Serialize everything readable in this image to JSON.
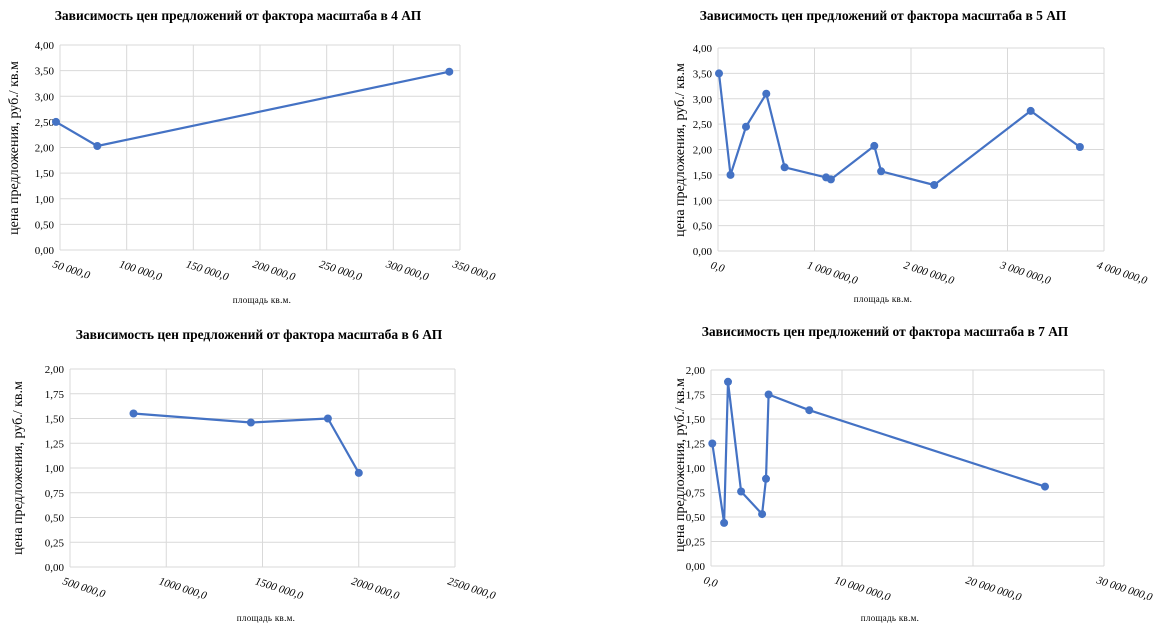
{
  "chart_data": [
    {
      "type": "line",
      "title": "Зависимость цен предложений от фактора масштаба в 4 АП",
      "xlabel": "площадь кв.м.",
      "ylabel": "цена предложения, руб./ кв.м",
      "xlim": [
        50000,
        350000
      ],
      "ylim": [
        0,
        4
      ],
      "x_tick_labels": [
        "50 000,0",
        "100 000,0",
        "150 000,0",
        "200 000,0",
        "250 000,0",
        "300 000,0",
        "350 000,0"
      ],
      "y_tick_labels": [
        "0,00",
        "0,50",
        "1,00",
        "1,50",
        "2,00",
        "2,50",
        "3,00",
        "3,50",
        "4,00"
      ],
      "grid": true,
      "series": [
        {
          "x": [
            47000,
            78000,
            342000
          ],
          "values": [
            2.5,
            2.03,
            3.48
          ]
        }
      ]
    },
    {
      "type": "line",
      "title": "Зависимость цен предложений от фактора масштаба в 5 АП",
      "xlabel": "площадь кв.м.",
      "ylabel": "цена предложения, руб./ кв.м",
      "xlim": [
        0,
        4000000
      ],
      "ylim": [
        0,
        4
      ],
      "x_tick_labels": [
        "0,0",
        "1 000 000,0",
        "2 000 000,0",
        "3 000 000,0",
        "4 000 000,0"
      ],
      "y_tick_labels": [
        "0,00",
        "0,50",
        "1,00",
        "1,50",
        "2,00",
        "2,50",
        "3,00",
        "3,50",
        "4,00"
      ],
      "grid": true,
      "series": [
        {
          "x": [
            10000,
            130000,
            290000,
            500000,
            690000,
            1120000,
            1170000,
            1620000,
            1690000,
            2240000,
            3240000,
            3750000
          ],
          "values": [
            3.5,
            1.5,
            2.45,
            3.1,
            1.65,
            1.45,
            1.41,
            2.07,
            1.57,
            1.3,
            2.76,
            2.05
          ]
        }
      ]
    },
    {
      "type": "line",
      "title": "Зависимость цен предложений от фактора масштаба в 6 АП",
      "xlabel": "площадь кв.м.",
      "ylabel": "цена предложения, руб./ кв.м",
      "xlim": [
        500000,
        2500000
      ],
      "ylim": [
        0,
        2
      ],
      "x_tick_labels": [
        "500 000,0",
        "1000 000,0",
        "1500 000,0",
        "2000 000,0",
        "2500 000,0"
      ],
      "y_tick_labels": [
        "0,00",
        "0,25",
        "0,50",
        "0,75",
        "1,00",
        "1,25",
        "1,50",
        "1,75",
        "2,00"
      ],
      "grid": true,
      "series": [
        {
          "x": [
            830000,
            1440000,
            1840000,
            2000000
          ],
          "values": [
            1.55,
            1.46,
            1.5,
            0.95
          ]
        }
      ]
    },
    {
      "type": "line",
      "title": "Зависимость цен предложений от фактора масштаба в 7 АП",
      "xlabel": "площадь кв.м.",
      "ylabel": "цена предложения, руб./ кв.м",
      "xlim": [
        0,
        30000000
      ],
      "ylim": [
        0,
        2
      ],
      "x_tick_labels": [
        "0,0",
        "10 000 000,0",
        "20 000 000,0",
        "30 000 000,0"
      ],
      "y_tick_labels": [
        "0,00",
        "0,25",
        "0,50",
        "0,75",
        "1,00",
        "1,25",
        "1,50",
        "1,75",
        "2,00"
      ],
      "grid": true,
      "series": [
        {
          "x": [
            100000,
            1000000,
            1300000,
            2300000,
            3900000,
            4200000,
            4400000,
            7500000,
            25500000
          ],
          "values": [
            1.25,
            0.44,
            1.88,
            0.76,
            0.53,
            0.89,
            1.75,
            1.59,
            0.81
          ]
        }
      ]
    }
  ]
}
